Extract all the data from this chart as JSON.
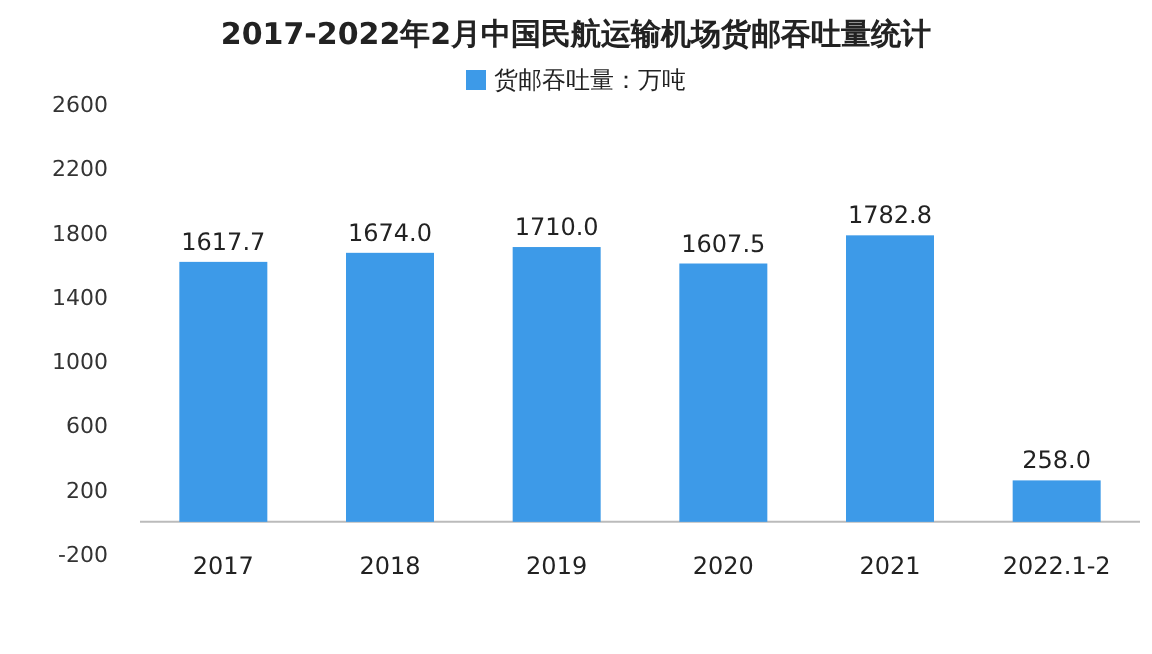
{
  "chart_data": {
    "type": "bar",
    "title": "2017-2022年2月中国民航运输机场货邮吞吐量统计",
    "categories": [
      "2017",
      "2018",
      "2019",
      "2020",
      "2021",
      "2022.1-2"
    ],
    "series": [
      {
        "name": "货邮吞吐量：万吨",
        "color": "#3d9ae8",
        "values": [
          1617.7,
          1674,
          1710,
          1607.5,
          1782.8,
          258
        ],
        "value_labels": [
          "1617.7",
          "1674.0",
          "1710.0",
          "1607.5",
          "1782.8",
          "258.0"
        ]
      }
    ],
    "ylim": [
      -200,
      2600
    ],
    "yticks": [
      -200,
      200,
      600,
      1000,
      1400,
      1800,
      2200,
      2600
    ],
    "legend": "top"
  }
}
